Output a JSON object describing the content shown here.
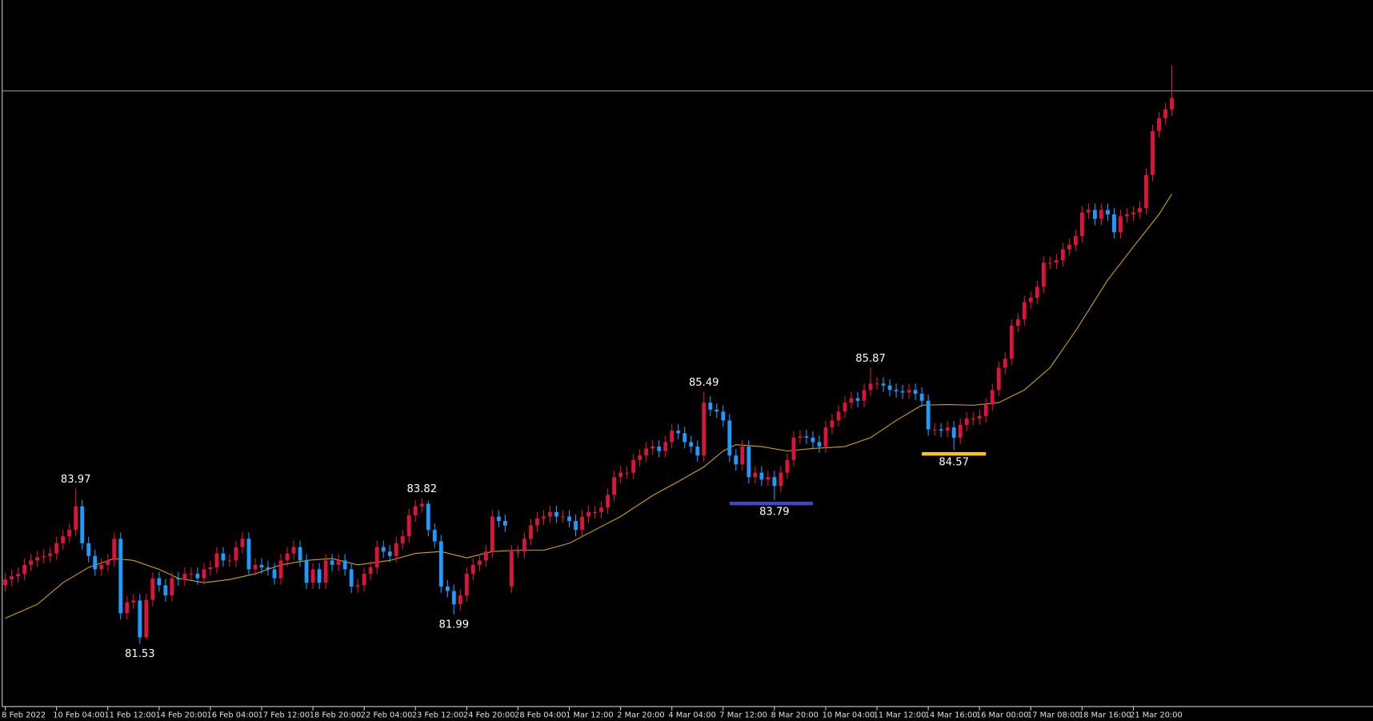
{
  "chart_data": {
    "type": "candlestick",
    "categories": [
      "8 Feb 2022",
      null,
      null,
      null,
      null,
      null,
      null,
      null,
      "10 Feb 04:00",
      null,
      null,
      null,
      null,
      null,
      null,
      null,
      "11 Feb 12:00",
      null,
      null,
      null,
      null,
      null,
      null,
      null,
      "14 Feb 20:00",
      null,
      null,
      null,
      null,
      null,
      null,
      null,
      "16 Feb 04:00",
      null,
      null,
      null,
      null,
      null,
      null,
      null,
      "17 Feb 12:00",
      null,
      null,
      null,
      null,
      null,
      null,
      null,
      "18 Feb 20:00",
      null,
      null,
      null,
      null,
      null,
      null,
      null,
      "22 Feb 04:00",
      null,
      null,
      null,
      null,
      null,
      null,
      null,
      "23 Feb 12:00",
      null,
      null,
      null,
      null,
      null,
      null,
      null,
      "24 Feb 20:00",
      null,
      null,
      null,
      null,
      null,
      null,
      null,
      "28 Feb 04:00",
      null,
      null,
      null,
      null,
      null,
      null,
      null,
      "1 Mar 12:00",
      null,
      null,
      null,
      null,
      null,
      null,
      null,
      "2 Mar 20:00",
      null,
      null,
      null,
      null,
      null,
      null,
      null,
      "4 Mar 04:00",
      null,
      null,
      null,
      null,
      null,
      null,
      null,
      "7 Mar 12:00",
      null,
      null,
      null,
      null,
      null,
      null,
      null,
      "8 Mar 20:00",
      null,
      null,
      null,
      null,
      null,
      null,
      null,
      "10 Mar 04:00",
      null,
      null,
      null,
      null,
      null,
      null,
      null,
      "11 Mar 12:00",
      null,
      null,
      null,
      null,
      null,
      null,
      null,
      "14 Mar 16:00",
      null,
      null,
      null,
      null,
      null,
      null,
      null,
      "16 Mar 00:00",
      null,
      null,
      null,
      null,
      null,
      null,
      null,
      "17 Mar 08:00",
      null,
      null,
      null,
      null,
      null,
      null,
      null,
      "18 Mar 16:00",
      null,
      null,
      null,
      null,
      null,
      null,
      null,
      "21 Mar 20:00",
      null,
      null,
      null,
      null,
      null,
      null
    ],
    "open": [
      82.45,
      82.54,
      82.59,
      82.63,
      82.77,
      82.84,
      82.89,
      82.91,
      82.95,
      83.11,
      83.22,
      83.32,
      83.69,
      83.11,
      82.91,
      82.7,
      82.77,
      82.84,
      83.18,
      82.01,
      82.18,
      82.21,
      81.63,
      82.22,
      82.56,
      82.45,
      82.29,
      82.56,
      82.54,
      82.63,
      82.63,
      82.56,
      82.7,
      82.73,
      82.95,
      82.84,
      82.84,
      83.05,
      83.18,
      82.7,
      82.77,
      82.73,
      82.7,
      82.56,
      82.84,
      82.95,
      83.05,
      82.84,
      82.49,
      82.7,
      82.49,
      82.84,
      82.77,
      82.84,
      82.7,
      82.43,
      82.45,
      82.63,
      82.73,
      83.05,
      82.98,
      82.91,
      83.11,
      83.22,
      83.55,
      83.69,
      83.73,
      83.32,
      83.14,
      82.43,
      82.36,
      82.15,
      82.29,
      82.63,
      82.77,
      82.84,
      82.98,
      83.53,
      83.46,
      82.43,
      82.98,
      82.98,
      83.18,
      83.39,
      83.5,
      83.53,
      83.6,
      83.53,
      83.53,
      83.46,
      83.32,
      83.53,
      83.6,
      83.6,
      83.67,
      83.87,
      84.15,
      84.22,
      84.22,
      84.42,
      84.49,
      84.6,
      84.63,
      84.56,
      84.7,
      84.88,
      84.84,
      84.7,
      84.63,
      84.49,
      85.32,
      85.21,
      85.18,
      85.04,
      84.49,
      84.35,
      84.63,
      84.15,
      84.22,
      84.11,
      84.15,
      84.01,
      84.22,
      84.42,
      84.77,
      84.79,
      84.77,
      84.7,
      84.63,
      84.93,
      85.04,
      85.18,
      85.32,
      85.39,
      85.35,
      85.52,
      85.62,
      85.62,
      85.59,
      85.52,
      85.5,
      85.48,
      85.52,
      85.46,
      85.35,
      84.9,
      84.9,
      84.88,
      84.93,
      84.77,
      84.97,
      85.07,
      85.07,
      85.11,
      85.29,
      85.52,
      85.87,
      86.01,
      86.53,
      86.63,
      86.9,
      86.97,
      87.14,
      87.52,
      87.52,
      87.56,
      87.73,
      87.8,
      87.94,
      88.31,
      88.35,
      88.21,
      88.35,
      88.28,
      88.0,
      88.25,
      88.28,
      88.31,
      88.38,
      88.9,
      89.59,
      89.79,
      89.93
    ],
    "high": [
      82.64,
      82.69,
      82.73,
      82.87,
      82.94,
      82.99,
      83.01,
      83.05,
      83.21,
      83.32,
      83.42,
      83.97,
      83.79,
      83.21,
      83.01,
      82.87,
      82.94,
      83.28,
      83.28,
      82.28,
      82.31,
      82.31,
      82.32,
      82.66,
      82.66,
      82.55,
      82.66,
      82.66,
      82.73,
      82.73,
      82.73,
      82.8,
      82.83,
      83.05,
      83.05,
      82.94,
      83.15,
      83.28,
      83.28,
      82.87,
      82.87,
      82.83,
      82.8,
      82.94,
      83.05,
      83.15,
      83.15,
      82.94,
      82.8,
      82.8,
      82.94,
      82.94,
      82.94,
      82.94,
      82.8,
      82.55,
      82.73,
      82.83,
      83.15,
      83.15,
      83.08,
      83.21,
      83.32,
      83.65,
      83.79,
      83.82,
      83.78,
      83.42,
      83.24,
      82.53,
      82.46,
      82.39,
      82.73,
      82.87,
      82.94,
      83.08,
      83.63,
      83.63,
      83.56,
      83.08,
      83.08,
      83.28,
      83.49,
      83.6,
      83.63,
      83.7,
      83.7,
      83.63,
      83.63,
      83.56,
      83.63,
      83.7,
      83.7,
      83.77,
      83.97,
      84.25,
      84.32,
      84.32,
      84.52,
      84.59,
      84.7,
      84.73,
      84.73,
      84.8,
      84.98,
      84.98,
      84.94,
      84.8,
      84.73,
      85.49,
      85.42,
      85.31,
      85.28,
      85.14,
      84.59,
      84.73,
      84.73,
      84.32,
      84.32,
      84.25,
      84.25,
      84.32,
      84.52,
      84.87,
      84.89,
      84.89,
      84.87,
      84.8,
      85.03,
      85.14,
      85.28,
      85.42,
      85.49,
      85.49,
      85.62,
      85.87,
      85.72,
      85.72,
      85.69,
      85.62,
      85.6,
      85.62,
      85.62,
      85.56,
      85.45,
      85.0,
      85.0,
      85.03,
      85.03,
      85.07,
      85.17,
      85.17,
      85.21,
      85.39,
      85.62,
      85.97,
      86.11,
      86.63,
      86.73,
      87.0,
      87.07,
      87.24,
      87.62,
      87.62,
      87.66,
      87.83,
      87.9,
      88.04,
      88.41,
      88.45,
      88.45,
      88.45,
      88.45,
      88.38,
      88.35,
      88.38,
      88.41,
      88.48,
      89.0,
      89.69,
      89.89,
      90.03,
      90.62
    ],
    "low": [
      82.35,
      82.44,
      82.49,
      82.53,
      82.67,
      82.74,
      82.79,
      82.81,
      82.85,
      83.01,
      83.12,
      83.22,
      83.01,
      82.81,
      82.6,
      82.6,
      82.67,
      82.74,
      81.91,
      81.91,
      82.08,
      81.53,
      81.6,
      82.12,
      82.35,
      82.19,
      82.19,
      82.44,
      82.44,
      82.53,
      82.46,
      82.46,
      82.6,
      82.63,
      82.74,
      82.74,
      82.74,
      82.95,
      82.6,
      82.6,
      82.63,
      82.6,
      82.46,
      82.46,
      82.74,
      82.85,
      82.74,
      82.39,
      82.39,
      82.39,
      82.39,
      82.67,
      82.67,
      82.6,
      82.33,
      82.33,
      82.35,
      82.53,
      82.63,
      82.88,
      82.81,
      82.81,
      83.01,
      83.12,
      83.45,
      83.59,
      83.22,
      83.04,
      82.33,
      82.26,
      81.99,
      82.05,
      82.19,
      82.53,
      82.67,
      82.74,
      82.88,
      83.36,
      83.29,
      82.33,
      82.88,
      82.88,
      83.08,
      83.29,
      83.4,
      83.43,
      83.43,
      83.43,
      83.36,
      83.22,
      83.22,
      83.43,
      83.5,
      83.5,
      83.57,
      83.77,
      84.05,
      84.12,
      84.12,
      84.32,
      84.39,
      84.5,
      84.46,
      84.46,
      84.6,
      84.74,
      84.6,
      84.53,
      84.39,
      84.39,
      85.11,
      85.08,
      84.94,
      84.39,
      84.25,
      84.25,
      84.05,
      84.05,
      84.01,
      84.01,
      83.79,
      83.91,
      84.12,
      84.32,
      84.67,
      84.67,
      84.6,
      84.53,
      84.53,
      84.83,
      84.94,
      85.08,
      85.22,
      85.25,
      85.25,
      85.42,
      85.52,
      85.49,
      85.42,
      85.4,
      85.38,
      85.38,
      85.36,
      85.25,
      84.8,
      84.8,
      84.78,
      84.78,
      84.57,
      84.67,
      84.87,
      84.97,
      84.97,
      85.01,
      85.19,
      85.42,
      85.77,
      85.91,
      86.43,
      86.53,
      86.8,
      86.87,
      87.04,
      87.42,
      87.42,
      87.46,
      87.63,
      87.7,
      87.84,
      88.21,
      88.11,
      88.11,
      88.18,
      87.9,
      87.9,
      88.15,
      88.18,
      88.21,
      88.28,
      88.8,
      89.49,
      89.69,
      89.83
    ],
    "close": [
      82.54,
      82.59,
      82.63,
      82.77,
      82.84,
      82.89,
      82.91,
      82.95,
      83.11,
      83.22,
      83.32,
      83.69,
      83.11,
      82.91,
      82.7,
      82.77,
      82.84,
      83.18,
      82.01,
      82.18,
      82.21,
      81.63,
      82.22,
      82.56,
      82.45,
      82.29,
      82.56,
      82.54,
      82.63,
      82.63,
      82.56,
      82.7,
      82.73,
      82.95,
      82.84,
      82.84,
      83.05,
      83.18,
      82.7,
      82.77,
      82.73,
      82.7,
      82.56,
      82.84,
      82.95,
      83.05,
      82.84,
      82.49,
      82.7,
      82.49,
      82.84,
      82.77,
      82.84,
      82.7,
      82.43,
      82.45,
      82.63,
      82.73,
      83.05,
      82.98,
      82.91,
      83.11,
      83.22,
      83.55,
      83.69,
      83.73,
      83.32,
      83.14,
      82.43,
      82.36,
      82.15,
      82.29,
      82.63,
      82.77,
      82.84,
      82.98,
      83.53,
      83.46,
      83.39,
      82.98,
      82.98,
      83.18,
      83.39,
      83.5,
      83.53,
      83.6,
      83.53,
      83.53,
      83.46,
      83.32,
      83.53,
      83.6,
      83.6,
      83.67,
      83.87,
      84.15,
      84.22,
      84.22,
      84.42,
      84.49,
      84.6,
      84.63,
      84.56,
      84.7,
      84.88,
      84.84,
      84.7,
      84.63,
      84.49,
      85.32,
      85.21,
      85.18,
      85.04,
      84.49,
      84.35,
      84.63,
      84.15,
      84.22,
      84.11,
      84.15,
      84.01,
      84.22,
      84.42,
      84.77,
      84.79,
      84.77,
      84.7,
      84.63,
      84.93,
      85.04,
      85.18,
      85.32,
      85.39,
      85.35,
      85.52,
      85.62,
      85.62,
      85.59,
      85.52,
      85.5,
      85.48,
      85.52,
      85.46,
      85.35,
      84.9,
      84.9,
      84.88,
      84.93,
      84.77,
      84.97,
      85.07,
      85.07,
      85.11,
      85.29,
      85.52,
      85.87,
      86.01,
      86.53,
      86.63,
      86.9,
      86.97,
      87.14,
      87.52,
      87.52,
      87.56,
      87.73,
      87.8,
      87.94,
      88.31,
      88.35,
      88.21,
      88.35,
      88.28,
      88.0,
      88.25,
      88.28,
      88.31,
      88.38,
      88.9,
      89.59,
      89.79,
      89.93,
      90.11
    ],
    "up_color": "#dc143c",
    "down_color": "#1e9bff",
    "ylim": [
      80.55,
      91.65
    ],
    "ma": {
      "color": "#d4a20f",
      "x": [
        0,
        5,
        9,
        13,
        17,
        20,
        24,
        27,
        31,
        35,
        39,
        43,
        47,
        51,
        55,
        60,
        64,
        68,
        72,
        76,
        80,
        84,
        88,
        92,
        96,
        101,
        105,
        109,
        112,
        114,
        118,
        122,
        126,
        131,
        135,
        139,
        143,
        147,
        151,
        155,
        159,
        163,
        167,
        172,
        176,
        180,
        182
      ],
      "values": [
        81.93,
        82.15,
        82.49,
        82.73,
        82.87,
        82.84,
        82.7,
        82.56,
        82.49,
        82.54,
        82.63,
        82.77,
        82.84,
        82.87,
        82.77,
        82.84,
        82.95,
        82.98,
        82.88,
        82.98,
        83.0,
        83.0,
        83.11,
        83.32,
        83.53,
        83.86,
        84.08,
        84.31,
        84.56,
        84.66,
        84.63,
        84.56,
        84.6,
        84.63,
        84.77,
        85.04,
        85.28,
        85.29,
        85.28,
        85.32,
        85.52,
        85.87,
        86.45,
        87.25,
        87.77,
        88.28,
        88.6
      ]
    },
    "price_line": {
      "value": 90.22,
      "color": "#aab4d0"
    },
    "annotations": [
      {
        "text": "83.97",
        "index": 11,
        "at": "high"
      },
      {
        "text": "81.53",
        "index": 21,
        "at": "low"
      },
      {
        "text": "83.82",
        "index": 65,
        "at": "high"
      },
      {
        "text": "81.99",
        "index": 70,
        "at": "low"
      },
      {
        "text": "85.49",
        "index": 109,
        "at": "high"
      },
      {
        "text": "83.79",
        "index": 120,
        "at": "low",
        "line": {
          "from": 113,
          "to": 126,
          "color": "#3f48cc"
        }
      },
      {
        "text": "85.87",
        "index": 135,
        "at": "high"
      },
      {
        "text": "84.57",
        "index": 148,
        "at": "low",
        "line": {
          "from": 143,
          "to": 153,
          "color": "#ffc20e"
        }
      }
    ]
  }
}
